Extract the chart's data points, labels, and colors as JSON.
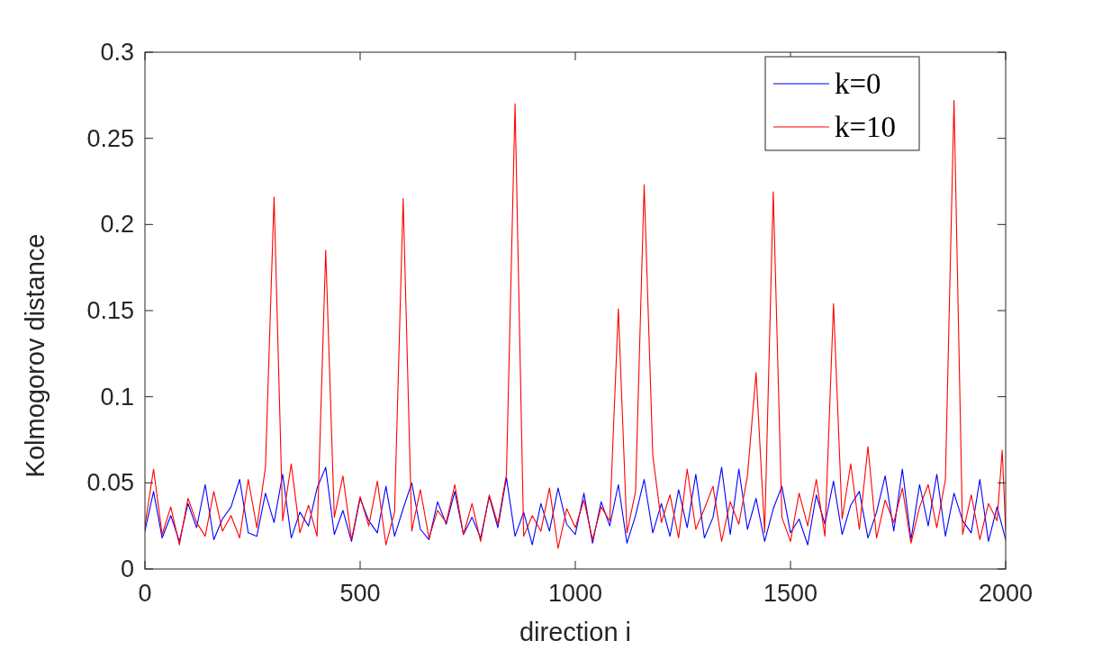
{
  "chart_data": {
    "type": "line",
    "xlabel": "direction i",
    "ylabel": "Kolmogorov distance",
    "xlim": [
      0,
      2000
    ],
    "xticks": [
      0,
      500,
      1000,
      1500,
      2000
    ],
    "ylim": [
      0,
      0.3
    ],
    "yticks": [
      0,
      0.05,
      0.1,
      0.15,
      0.2,
      0.25,
      0.3
    ],
    "grid": false,
    "legend": "top right",
    "marker": "none",
    "line_style": "solid",
    "series": [
      {
        "name": "k=0",
        "color": "#0000ff",
        "x": [
          0,
          20,
          40,
          60,
          80,
          100,
          120,
          140,
          160,
          180,
          200,
          220,
          240,
          260,
          280,
          300,
          320,
          340,
          360,
          380,
          400,
          420,
          440,
          460,
          480,
          500,
          520,
          540,
          560,
          580,
          600,
          620,
          640,
          660,
          680,
          700,
          720,
          740,
          760,
          780,
          800,
          820,
          840,
          860,
          880,
          900,
          920,
          940,
          960,
          980,
          1000,
          1020,
          1040,
          1060,
          1080,
          1100,
          1120,
          1140,
          1160,
          1180,
          1200,
          1220,
          1240,
          1260,
          1280,
          1300,
          1320,
          1340,
          1360,
          1380,
          1400,
          1420,
          1440,
          1460,
          1480,
          1500,
          1520,
          1540,
          1560,
          1580,
          1600,
          1620,
          1640,
          1660,
          1680,
          1700,
          1720,
          1740,
          1760,
          1780,
          1800,
          1820,
          1840,
          1860,
          1880,
          1900,
          1920,
          1940,
          1960,
          1980,
          2000
        ],
        "values": [
          0.022,
          0.045,
          0.018,
          0.031,
          0.016,
          0.038,
          0.024,
          0.049,
          0.017,
          0.029,
          0.036,
          0.052,
          0.021,
          0.019,
          0.044,
          0.027,
          0.055,
          0.018,
          0.033,
          0.025,
          0.047,
          0.059,
          0.02,
          0.034,
          0.016,
          0.041,
          0.028,
          0.021,
          0.048,
          0.019,
          0.035,
          0.05,
          0.023,
          0.017,
          0.039,
          0.026,
          0.045,
          0.02,
          0.03,
          0.018,
          0.042,
          0.024,
          0.053,
          0.019,
          0.033,
          0.014,
          0.038,
          0.022,
          0.047,
          0.026,
          0.02,
          0.044,
          0.015,
          0.039,
          0.025,
          0.049,
          0.015,
          0.031,
          0.052,
          0.021,
          0.038,
          0.019,
          0.046,
          0.024,
          0.055,
          0.018,
          0.03,
          0.059,
          0.02,
          0.058,
          0.023,
          0.041,
          0.016,
          0.035,
          0.048,
          0.021,
          0.029,
          0.014,
          0.043,
          0.026,
          0.051,
          0.02,
          0.037,
          0.045,
          0.018,
          0.033,
          0.054,
          0.022,
          0.058,
          0.017,
          0.049,
          0.025,
          0.055,
          0.019,
          0.044,
          0.028,
          0.021,
          0.052,
          0.016,
          0.036,
          0.017
        ]
      },
      {
        "name": "k=10",
        "color": "#ff0000",
        "x": [
          0,
          20,
          40,
          60,
          80,
          100,
          120,
          140,
          160,
          180,
          200,
          220,
          240,
          260,
          280,
          300,
          320,
          340,
          360,
          380,
          400,
          420,
          440,
          460,
          480,
          500,
          520,
          540,
          560,
          580,
          600,
          620,
          640,
          660,
          680,
          700,
          720,
          740,
          760,
          780,
          800,
          820,
          840,
          860,
          880,
          900,
          920,
          940,
          960,
          980,
          1000,
          1020,
          1040,
          1060,
          1080,
          1100,
          1120,
          1140,
          1160,
          1180,
          1200,
          1220,
          1240,
          1260,
          1280,
          1300,
          1320,
          1340,
          1360,
          1380,
          1400,
          1420,
          1440,
          1460,
          1480,
          1500,
          1520,
          1540,
          1560,
          1580,
          1600,
          1620,
          1640,
          1660,
          1680,
          1700,
          1720,
          1740,
          1760,
          1780,
          1800,
          1820,
          1840,
          1860,
          1880,
          1900,
          1920,
          1940,
          1960,
          1980,
          1992,
          2000
        ],
        "values": [
          0.025,
          0.058,
          0.02,
          0.036,
          0.014,
          0.041,
          0.027,
          0.019,
          0.045,
          0.022,
          0.031,
          0.018,
          0.052,
          0.024,
          0.059,
          0.216,
          0.028,
          0.061,
          0.021,
          0.037,
          0.019,
          0.185,
          0.03,
          0.054,
          0.017,
          0.042,
          0.025,
          0.051,
          0.014,
          0.033,
          0.215,
          0.022,
          0.046,
          0.018,
          0.034,
          0.027,
          0.049,
          0.02,
          0.038,
          0.016,
          0.043,
          0.026,
          0.055,
          0.27,
          0.019,
          0.031,
          0.022,
          0.047,
          0.012,
          0.035,
          0.024,
          0.04,
          0.017,
          0.036,
          0.028,
          0.151,
          0.021,
          0.045,
          0.223,
          0.066,
          0.027,
          0.043,
          0.018,
          0.058,
          0.023,
          0.035,
          0.048,
          0.016,
          0.039,
          0.026,
          0.054,
          0.114,
          0.021,
          0.219,
          0.03,
          0.016,
          0.044,
          0.025,
          0.052,
          0.019,
          0.154,
          0.029,
          0.061,
          0.023,
          0.071,
          0.018,
          0.04,
          0.027,
          0.047,
          0.015,
          0.036,
          0.049,
          0.024,
          0.052,
          0.272,
          0.02,
          0.043,
          0.017,
          0.038,
          0.028,
          0.069,
          0.022
        ]
      }
    ]
  }
}
